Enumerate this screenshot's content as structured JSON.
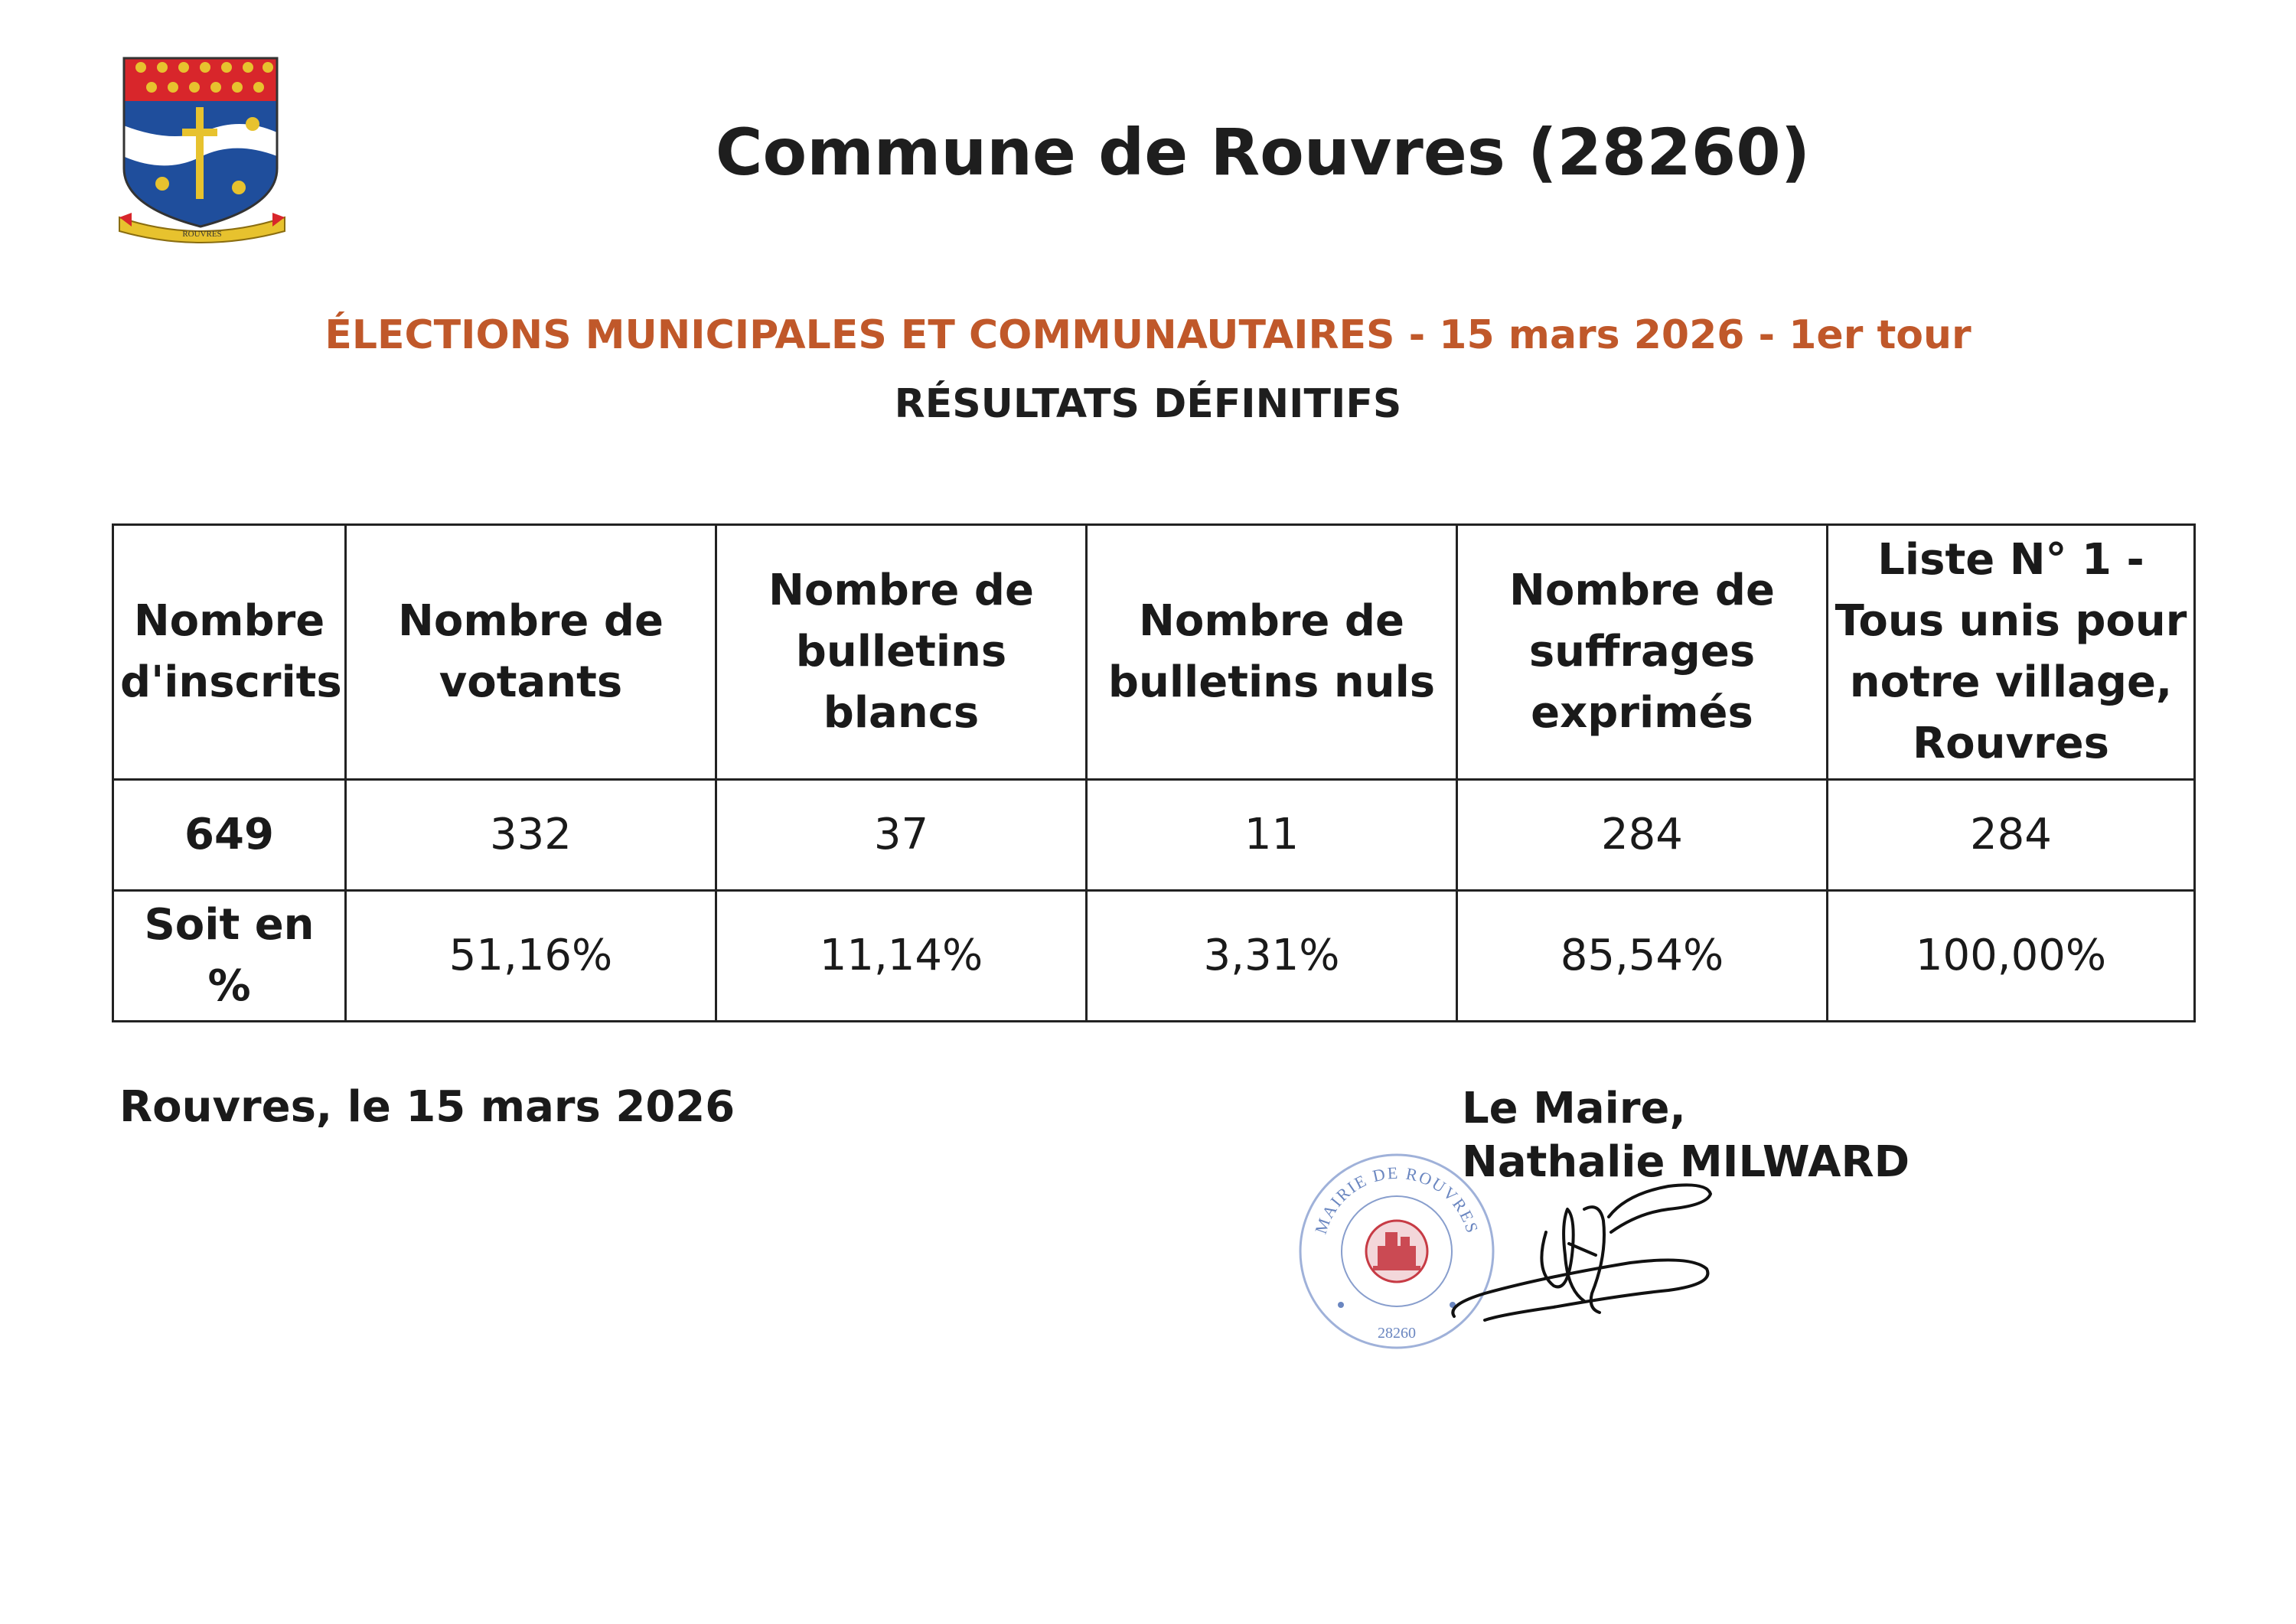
{
  "header": {
    "commune_title": "Commune de Rouvres (28260)",
    "crest_banner_text": "ROUVRES",
    "election_title": "ÉLECTIONS MUNICIPALES ET COMMUNAUTAIRES - 15 mars 2026 - 1er tour",
    "results_title": "RÉSULTATS DÉFINITIFS"
  },
  "table": {
    "headers": [
      "Nombre d'inscrits",
      "Nombre de votants",
      "Nombre de bulletins blancs",
      "Nombre de bulletins nuls",
      "Nombre de suffrages exprimés",
      "Liste N° 1 - Tous unis pour notre village, Rouvres"
    ],
    "values": [
      "649",
      "332",
      "37",
      "11",
      "284",
      "284"
    ],
    "percent_label": "Soit en %",
    "percents": [
      "51,16%",
      "11,14%",
      "3,31%",
      "85,54%",
      "100,00%"
    ]
  },
  "footer": {
    "place_date": "Rouvres, le 15 mars 2026",
    "mayor_title": "Le Maire,",
    "mayor_name": "Nathalie MILWARD",
    "seal_text_top": "MAIRIE DE ROUVRES",
    "seal_text_bottom": "28260"
  },
  "colors": {
    "election_title": "#c0582a",
    "crest_red": "#d8262b",
    "crest_blue": "#1f4e9c",
    "crest_gold": "#e7c22e",
    "seal_blue": "#6a86c0",
    "seal_red": "#c73b45"
  }
}
